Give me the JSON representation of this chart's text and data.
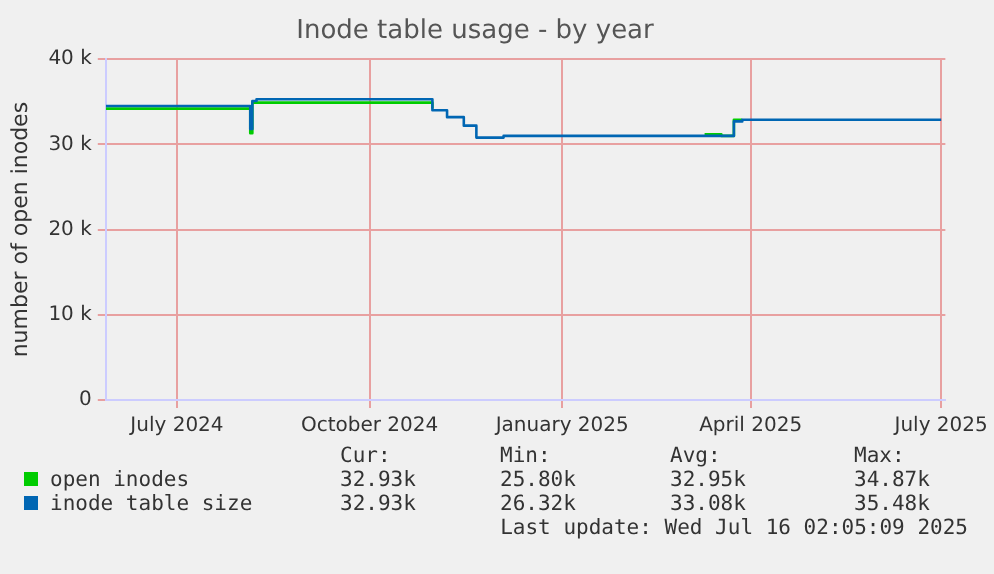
{
  "chart_data": {
    "type": "step",
    "title": "Inode table usage - by year",
    "ylabel": "number of open inodes",
    "xlim": [
      "2024-05-28",
      "2025-07-03"
    ],
    "xticks": [
      {
        "value": "2024-07-01",
        "label": "July 2024"
      },
      {
        "value": "2024-10-01",
        "label": "October 2024"
      },
      {
        "value": "2025-01-01",
        "label": "January 2025"
      },
      {
        "value": "2025-04-01",
        "label": "April 2025"
      },
      {
        "value": "2025-07-01",
        "label": "July 2025"
      }
    ],
    "ylim": [
      0,
      40
    ],
    "yticks": [
      0,
      {
        "value": 10,
        "label": "10 k"
      },
      {
        "value": 20,
        "label": "20 k"
      },
      {
        "value": 30,
        "label": "30 k"
      },
      {
        "value": 40,
        "label": "40 k"
      }
    ],
    "grid": true,
    "legend": "bottom",
    "marker": "none",
    "series": [
      {
        "name": "open inodes",
        "color": "#00cc00",
        "x": [
          "2024-05-28",
          "2024-08-04",
          "2024-08-05",
          "2024-08-06",
          "2024-10-30",
          "2024-10-31",
          "2024-11-07",
          "2025-03-10",
          "2025-03-18",
          "2025-03-24",
          "2025-03-28"
        ],
        "values": [
          34.2,
          34.2,
          31.3,
          34.9,
          34.9,
          34.2,
          null,
          31.2,
          31.0,
          32.9,
          32.9
        ]
      },
      {
        "name": "inode table size",
        "color": "#0066b3",
        "x": [
          "2024-05-28",
          "2024-08-04",
          "2024-08-05",
          "2024-08-06",
          "2024-08-08",
          "2024-10-30",
          "2024-10-31",
          "2024-11-07",
          "2024-11-15",
          "2024-11-21",
          "2024-12-04",
          "2025-03-24",
          "2025-03-28",
          "2025-07-01"
        ],
        "values": [
          34.5,
          34.5,
          31.8,
          35.1,
          35.3,
          35.3,
          34.0,
          33.2,
          32.2,
          30.8,
          31.0,
          32.7,
          32.9,
          32.9
        ]
      }
    ],
    "annotations": [
      "Cur:",
      "Min:",
      "Avg:",
      "Max:",
      "32.93k",
      "25.80k",
      "32.95k",
      "34.87k",
      "32.93k",
      "26.32k",
      "33.08k",
      "35.48k",
      "Last update: Wed Jul 16 02:05:09 2025"
    ]
  }
}
